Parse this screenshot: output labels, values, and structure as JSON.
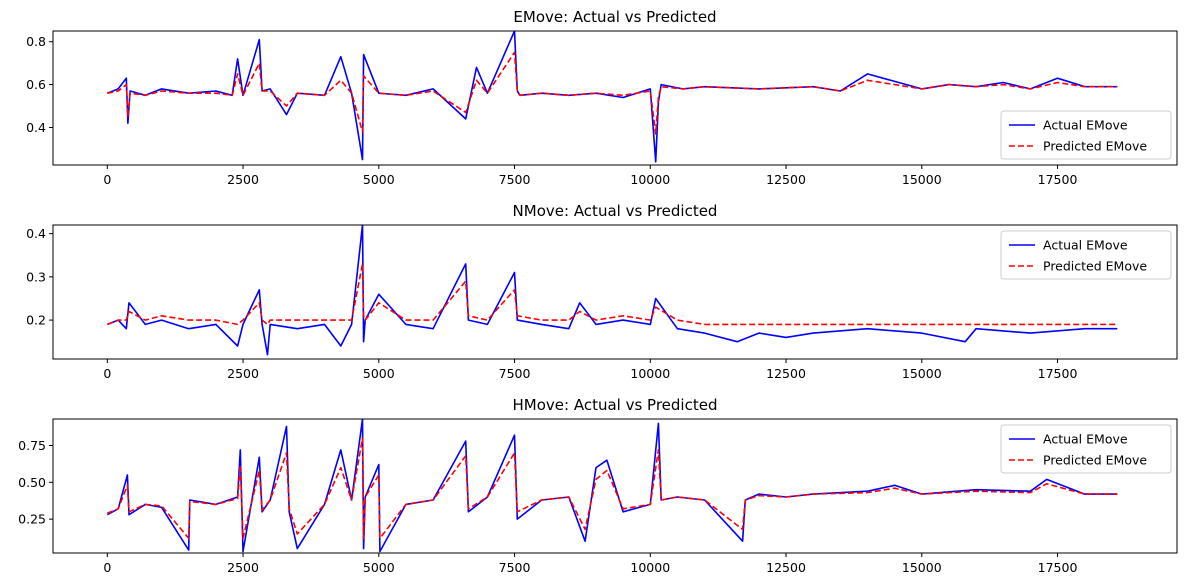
{
  "chart_data": [
    {
      "type": "line",
      "title": "EMove: Actual vs Predicted",
      "xlabel": "",
      "ylabel": "",
      "xlim": [
        -1000,
        19700
      ],
      "ylim": [
        0.225,
        0.85
      ],
      "xticks": [
        0,
        2500,
        5000,
        7500,
        10000,
        12500,
        15000,
        17500
      ],
      "xtick_labels": [
        "0",
        "2500",
        "5000",
        "7500",
        "10000",
        "12500",
        "15000",
        "17500"
      ],
      "yticks": [
        0.4,
        0.6,
        0.8
      ],
      "ytick_labels": [
        "0.4",
        "0.6",
        "0.8"
      ],
      "legend_position": "lower-right",
      "grid": false,
      "series": [
        {
          "name": "Actual EMove",
          "color": "#0000ff",
          "style": "solid",
          "x": [
            0,
            200,
            350,
            380,
            420,
            700,
            1000,
            1500,
            2000,
            2300,
            2400,
            2500,
            2800,
            2850,
            3000,
            3300,
            3500,
            4000,
            4300,
            4500,
            4700,
            4720,
            5000,
            5500,
            6000,
            6600,
            6800,
            7000,
            7500,
            7550,
            7600,
            8000,
            8500,
            9000,
            9500,
            10000,
            10100,
            10150,
            10200,
            10600,
            11000,
            12000,
            13000,
            13500,
            14000,
            15000,
            15500,
            16000,
            16500,
            17000,
            17500,
            18000,
            18600
          ],
          "y": [
            0.56,
            0.58,
            0.63,
            0.42,
            0.57,
            0.55,
            0.58,
            0.56,
            0.57,
            0.55,
            0.72,
            0.55,
            0.81,
            0.57,
            0.58,
            0.46,
            0.56,
            0.55,
            0.73,
            0.56,
            0.25,
            0.74,
            0.56,
            0.55,
            0.58,
            0.44,
            0.68,
            0.56,
            0.85,
            0.57,
            0.55,
            0.56,
            0.55,
            0.56,
            0.54,
            0.58,
            0.24,
            0.52,
            0.6,
            0.58,
            0.59,
            0.58,
            0.59,
            0.57,
            0.65,
            0.58,
            0.6,
            0.59,
            0.61,
            0.58,
            0.63,
            0.59,
            0.59
          ]
        },
        {
          "name": "Predicted EMove",
          "color": "#ff0000",
          "style": "dashed",
          "x": [
            0,
            200,
            350,
            380,
            420,
            700,
            1000,
            1500,
            2000,
            2300,
            2400,
            2500,
            2800,
            2850,
            3000,
            3300,
            3500,
            4000,
            4300,
            4500,
            4700,
            4720,
            5000,
            5500,
            6000,
            6600,
            6800,
            7000,
            7500,
            7550,
            7600,
            8000,
            8500,
            9000,
            9500,
            10000,
            10100,
            10150,
            10200,
            10600,
            11000,
            12000,
            13000,
            13500,
            14000,
            15000,
            15500,
            16000,
            16500,
            17000,
            17500,
            18000,
            18600
          ],
          "y": [
            0.56,
            0.57,
            0.6,
            0.45,
            0.56,
            0.55,
            0.57,
            0.56,
            0.56,
            0.55,
            0.65,
            0.55,
            0.7,
            0.57,
            0.57,
            0.5,
            0.56,
            0.55,
            0.62,
            0.56,
            0.38,
            0.64,
            0.56,
            0.55,
            0.57,
            0.47,
            0.62,
            0.56,
            0.75,
            0.57,
            0.55,
            0.56,
            0.55,
            0.56,
            0.55,
            0.57,
            0.37,
            0.54,
            0.59,
            0.58,
            0.59,
            0.58,
            0.59,
            0.57,
            0.62,
            0.58,
            0.6,
            0.59,
            0.6,
            0.58,
            0.61,
            0.59,
            0.59
          ]
        }
      ]
    },
    {
      "type": "line",
      "title": "NMove: Actual vs Predicted",
      "xlabel": "",
      "ylabel": "",
      "xlim": [
        -1000,
        19700
      ],
      "ylim": [
        0.11,
        0.42
      ],
      "xticks": [
        0,
        2500,
        5000,
        7500,
        10000,
        12500,
        15000,
        17500
      ],
      "xtick_labels": [
        "0",
        "2500",
        "5000",
        "7500",
        "10000",
        "12500",
        "15000",
        "17500"
      ],
      "yticks": [
        0.2,
        0.3,
        0.4
      ],
      "ytick_labels": [
        "0.2",
        "0.3",
        "0.4"
      ],
      "legend_position": "upper-right",
      "grid": false,
      "series": [
        {
          "name": "Actual EMove",
          "color": "#0000ff",
          "style": "solid",
          "x": [
            0,
            200,
            350,
            400,
            700,
            1000,
            1500,
            2000,
            2400,
            2500,
            2800,
            2850,
            2950,
            3000,
            3500,
            4000,
            4300,
            4500,
            4700,
            4720,
            4750,
            5000,
            5500,
            6000,
            6600,
            6650,
            7000,
            7500,
            7550,
            8000,
            8500,
            8700,
            9000,
            9500,
            10000,
            10100,
            10500,
            11000,
            11600,
            12000,
            12500,
            13000,
            14000,
            15000,
            15800,
            16000,
            17000,
            18000,
            18600
          ],
          "y": [
            0.19,
            0.2,
            0.18,
            0.24,
            0.19,
            0.2,
            0.18,
            0.19,
            0.14,
            0.19,
            0.27,
            0.19,
            0.12,
            0.19,
            0.18,
            0.19,
            0.14,
            0.19,
            0.42,
            0.15,
            0.2,
            0.26,
            0.19,
            0.18,
            0.33,
            0.2,
            0.19,
            0.31,
            0.2,
            0.19,
            0.18,
            0.24,
            0.19,
            0.2,
            0.19,
            0.25,
            0.18,
            0.17,
            0.15,
            0.17,
            0.16,
            0.17,
            0.18,
            0.17,
            0.15,
            0.18,
            0.17,
            0.18,
            0.18
          ]
        },
        {
          "name": "Predicted EMove",
          "color": "#ff0000",
          "style": "dashed",
          "x": [
            0,
            200,
            350,
            400,
            700,
            1000,
            1500,
            2000,
            2400,
            2500,
            2800,
            2850,
            2950,
            3000,
            3500,
            4000,
            4300,
            4500,
            4700,
            4720,
            4750,
            5000,
            5500,
            6000,
            6600,
            6650,
            7000,
            7500,
            7550,
            8000,
            8500,
            8700,
            9000,
            9500,
            10000,
            10100,
            10500,
            11000,
            11600,
            12000,
            12500,
            13000,
            14000,
            15000,
            15800,
            16000,
            17000,
            18000,
            18600
          ],
          "y": [
            0.19,
            0.2,
            0.2,
            0.22,
            0.2,
            0.21,
            0.2,
            0.2,
            0.19,
            0.2,
            0.24,
            0.2,
            0.19,
            0.2,
            0.2,
            0.2,
            0.2,
            0.2,
            0.33,
            0.21,
            0.2,
            0.24,
            0.2,
            0.2,
            0.29,
            0.21,
            0.2,
            0.27,
            0.21,
            0.2,
            0.2,
            0.22,
            0.2,
            0.21,
            0.2,
            0.23,
            0.2,
            0.19,
            0.19,
            0.19,
            0.19,
            0.19,
            0.19,
            0.19,
            0.19,
            0.19,
            0.19,
            0.19,
            0.19
          ]
        }
      ]
    },
    {
      "type": "line",
      "title": "HMove: Actual vs Predicted",
      "xlabel": "",
      "ylabel": "",
      "xlim": [
        -1000,
        19700
      ],
      "ylim": [
        0.02,
        0.93
      ],
      "xticks": [
        0,
        2500,
        5000,
        7500,
        10000,
        12500,
        15000,
        17500
      ],
      "xtick_labels": [
        "0",
        "2500",
        "5000",
        "7500",
        "10000",
        "12500",
        "15000",
        "17500"
      ],
      "yticks": [
        0.25,
        0.5,
        0.75
      ],
      "ytick_labels": [
        "0.25",
        "0.50",
        "0.75"
      ],
      "legend_position": "upper-right",
      "grid": false,
      "series": [
        {
          "name": "Actual EMove",
          "color": "#0000ff",
          "style": "solid",
          "x": [
            0,
            200,
            370,
            400,
            700,
            1000,
            1500,
            1520,
            2000,
            2400,
            2450,
            2500,
            2800,
            2850,
            3000,
            3300,
            3350,
            3500,
            4000,
            4300,
            4500,
            4700,
            4720,
            4750,
            5000,
            5020,
            5500,
            6000,
            6600,
            6650,
            7000,
            7500,
            7550,
            8000,
            8500,
            8800,
            9000,
            9200,
            9500,
            10000,
            10150,
            10200,
            10500,
            11000,
            11700,
            11750,
            12000,
            12500,
            13000,
            14000,
            14500,
            15000,
            16000,
            17000,
            17300,
            18000,
            18600
          ],
          "y": [
            0.28,
            0.32,
            0.55,
            0.28,
            0.35,
            0.33,
            0.04,
            0.38,
            0.35,
            0.4,
            0.72,
            0.03,
            0.67,
            0.3,
            0.38,
            0.88,
            0.3,
            0.05,
            0.35,
            0.72,
            0.38,
            0.93,
            0.05,
            0.4,
            0.62,
            0.03,
            0.35,
            0.38,
            0.78,
            0.3,
            0.4,
            0.82,
            0.25,
            0.38,
            0.4,
            0.1,
            0.6,
            0.65,
            0.3,
            0.35,
            0.9,
            0.38,
            0.4,
            0.38,
            0.1,
            0.38,
            0.42,
            0.4,
            0.42,
            0.44,
            0.48,
            0.42,
            0.45,
            0.44,
            0.52,
            0.42,
            0.42
          ]
        },
        {
          "name": "Predicted EMove",
          "color": "#ff0000",
          "style": "dashed",
          "x": [
            0,
            200,
            370,
            400,
            700,
            1000,
            1500,
            1520,
            2000,
            2400,
            2450,
            2500,
            2800,
            2850,
            3000,
            3300,
            3350,
            3500,
            4000,
            4300,
            4500,
            4700,
            4720,
            4750,
            5000,
            5020,
            5500,
            6000,
            6600,
            6650,
            7000,
            7500,
            7550,
            8000,
            8500,
            8800,
            9000,
            9200,
            9500,
            10000,
            10150,
            10200,
            10500,
            11000,
            11700,
            11750,
            12000,
            12500,
            13000,
            14000,
            14500,
            15000,
            16000,
            17000,
            17300,
            18000,
            18600
          ],
          "y": [
            0.29,
            0.32,
            0.48,
            0.3,
            0.35,
            0.34,
            0.12,
            0.37,
            0.35,
            0.39,
            0.62,
            0.12,
            0.58,
            0.31,
            0.38,
            0.7,
            0.32,
            0.15,
            0.35,
            0.6,
            0.38,
            0.8,
            0.12,
            0.4,
            0.55,
            0.12,
            0.35,
            0.38,
            0.68,
            0.32,
            0.4,
            0.7,
            0.3,
            0.38,
            0.4,
            0.18,
            0.52,
            0.58,
            0.32,
            0.35,
            0.72,
            0.38,
            0.4,
            0.38,
            0.18,
            0.38,
            0.41,
            0.4,
            0.42,
            0.43,
            0.46,
            0.42,
            0.44,
            0.43,
            0.49,
            0.42,
            0.42
          ]
        }
      ]
    }
  ]
}
